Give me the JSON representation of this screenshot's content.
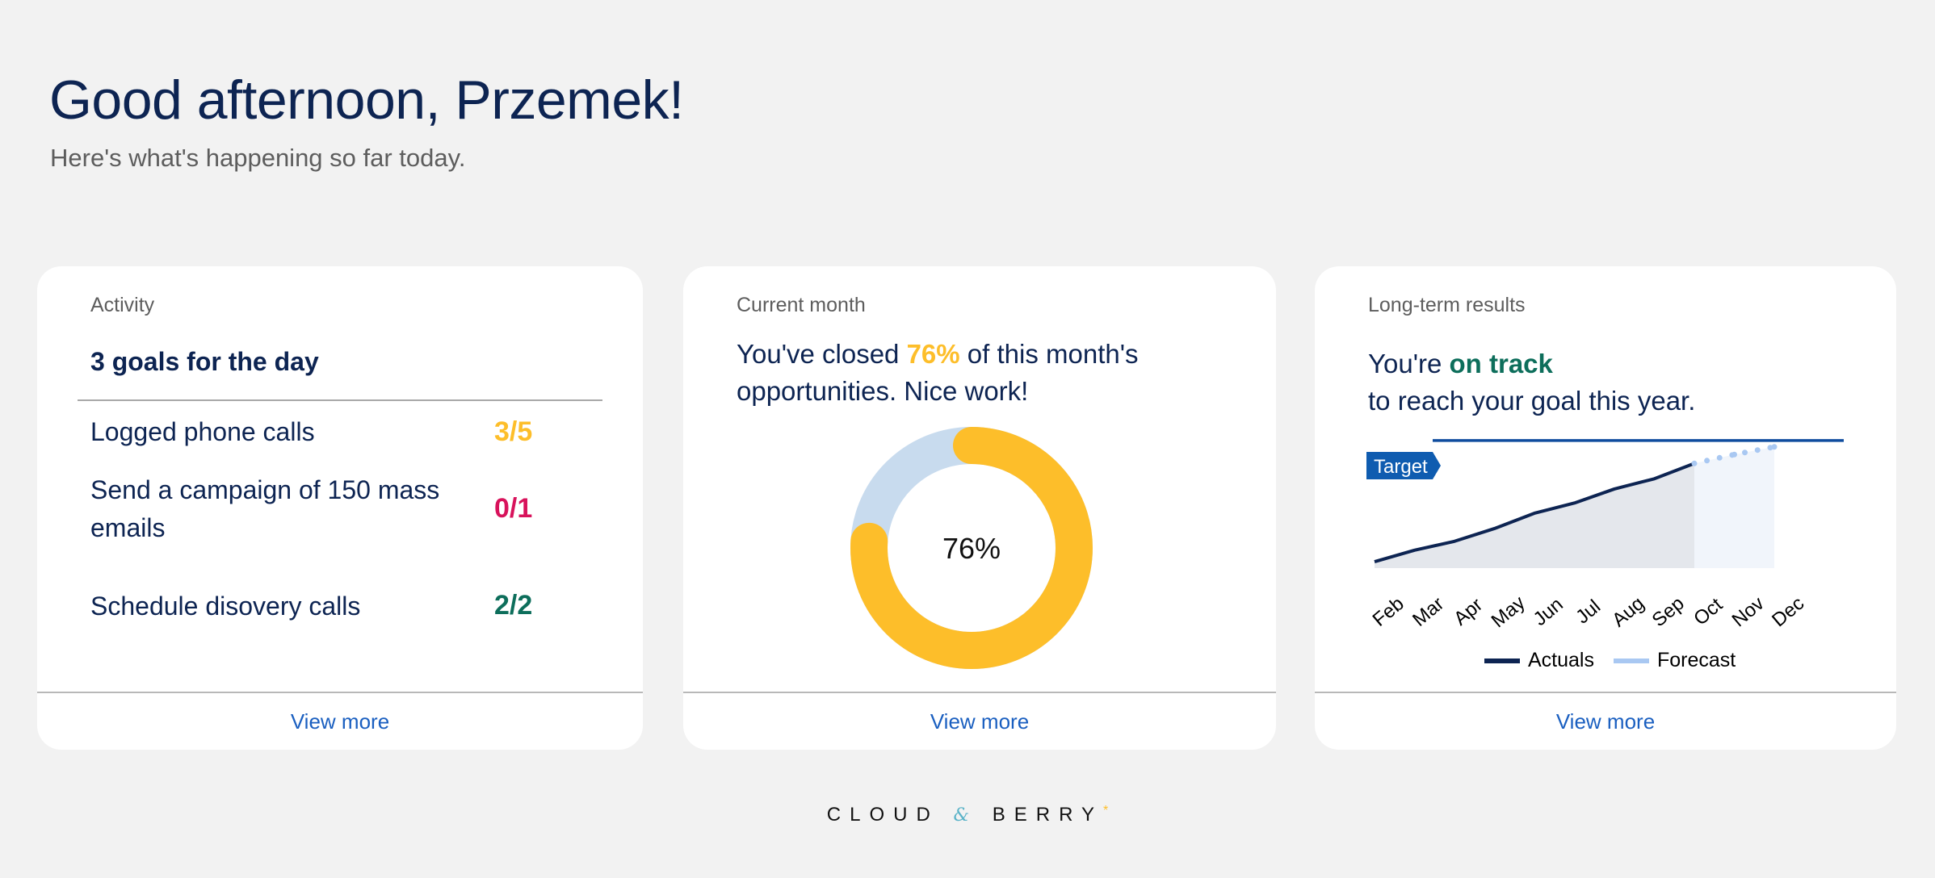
{
  "header": {
    "greeting": "Good afternoon, Przemek!",
    "subtitle": "Here's what's happening so far today."
  },
  "activity": {
    "label": "Activity",
    "title": "3 goals for the day",
    "goals": [
      {
        "label": "Logged phone calls",
        "value": "3/5",
        "color": "#fdbe2a"
      },
      {
        "label": "Send a campaign of 150 mass emails",
        "value": "0/1",
        "color": "#d8125b"
      },
      {
        "label": "Schedule disovery calls",
        "value": "2/2",
        "color": "#0d6e5b"
      }
    ],
    "view_more": "View more"
  },
  "current_month": {
    "label": "Current month",
    "text_before": "You've closed ",
    "percent_text": "76%",
    "text_after": " of this month's opportunities. Nice work!",
    "donut_label": "76%",
    "progress": 0.76,
    "colors": {
      "filled": "#fdbe2a",
      "remaining": "#c8dbee"
    },
    "view_more": "View more"
  },
  "long_term": {
    "label": "Long-term results",
    "text_before": "You're ",
    "on_track": "on track",
    "text_after": "to reach your goal this year.",
    "target_label": "Target",
    "legend": [
      {
        "label": "Actuals",
        "color": "#0d2452"
      },
      {
        "label": "Forecast",
        "color": "#a9c8f2"
      }
    ],
    "view_more": "View more"
  },
  "chart_data": {
    "type": "line",
    "categories": [
      "Feb",
      "Mar",
      "Apr",
      "May",
      "Jun",
      "Jul",
      "Aug",
      "Sep",
      "Oct",
      "Nov",
      "Dec"
    ],
    "series": [
      {
        "name": "Actuals",
        "values": [
          5,
          14,
          21,
          31,
          43,
          51,
          62,
          70,
          82,
          null,
          null
        ]
      },
      {
        "name": "Forecast",
        "values": [
          null,
          null,
          null,
          null,
          null,
          null,
          null,
          null,
          82,
          89,
          95
        ]
      }
    ],
    "target": 100,
    "ylim": [
      0,
      110
    ],
    "colors": {
      "actuals": "#0d2452",
      "forecast": "#a9c8f2",
      "target": "#0f4c9e",
      "area": "#e4e7ec",
      "forecast_area": "#f1f5fb"
    }
  },
  "footer": {
    "logo_left": "CLOUD",
    "logo_amp": "&",
    "logo_right": "BERRY",
    "logo_star": "*"
  }
}
